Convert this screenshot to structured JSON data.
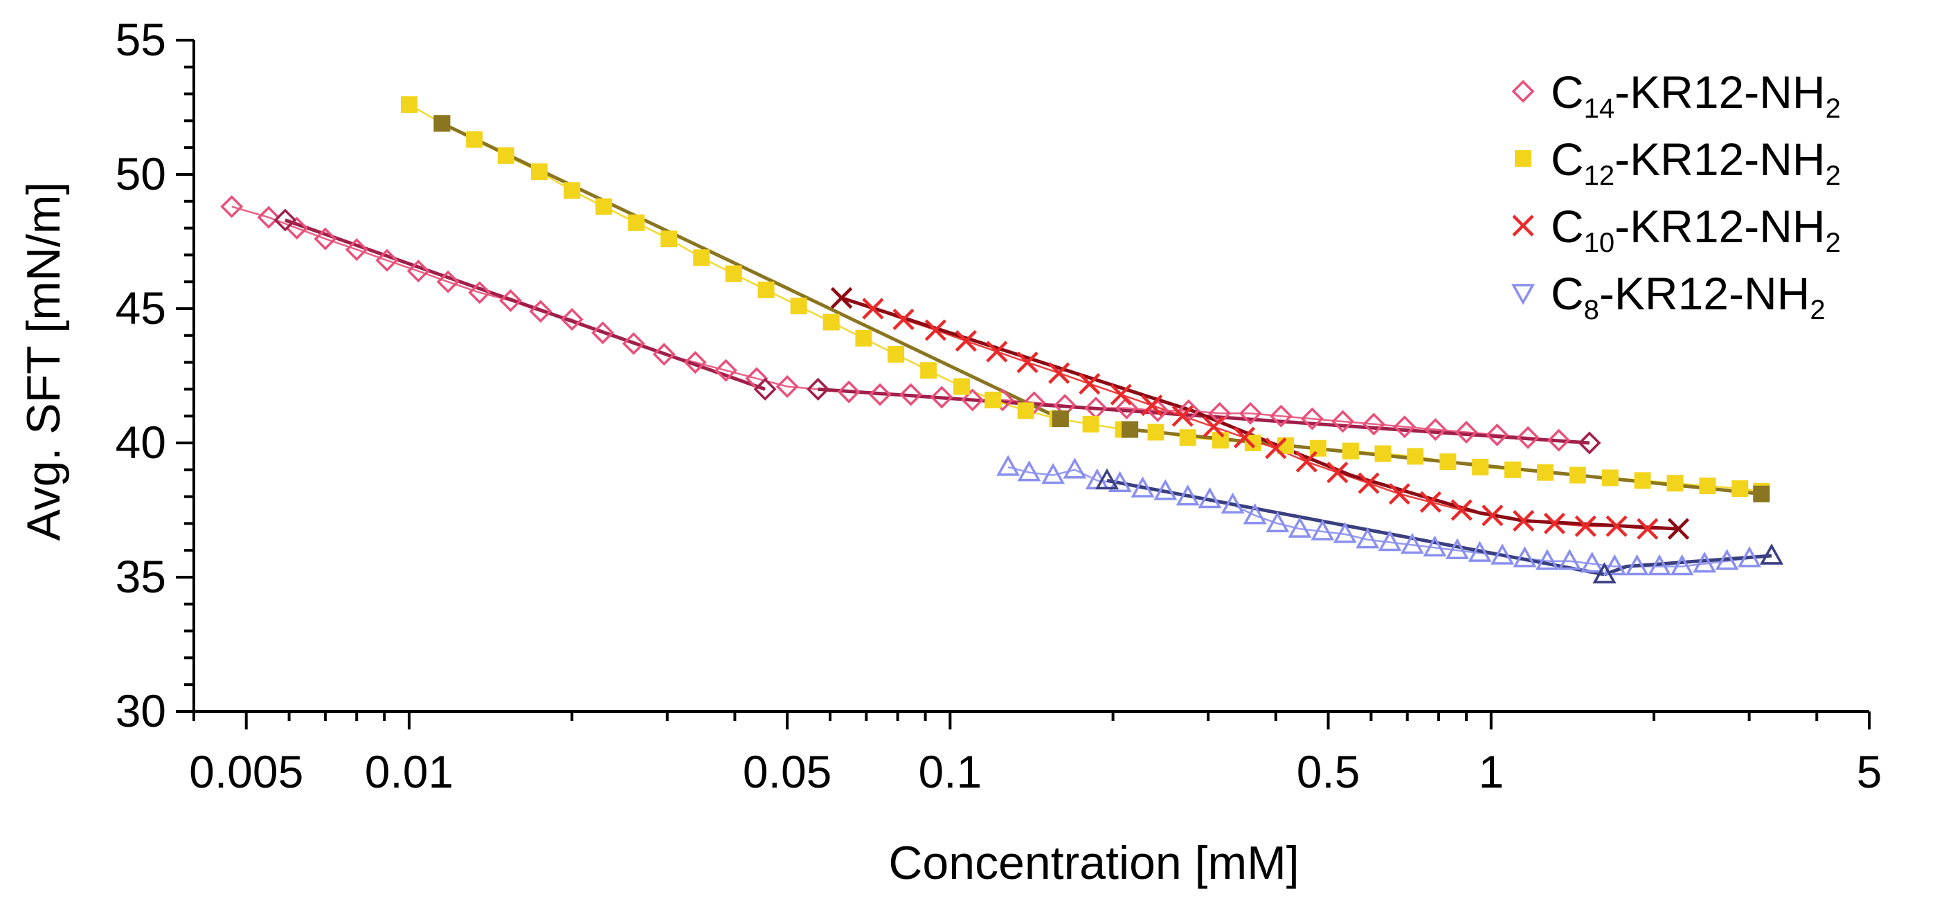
{
  "chart_data": {
    "type": "scatter",
    "title": "",
    "xlabel": "Concentration [mM]",
    "ylabel": "Avg. SFT [mN/m]",
    "xscale": "log",
    "xlim": [
      0.004,
      5
    ],
    "ylim": [
      30,
      55
    ],
    "x_ticks": [
      0.005,
      0.01,
      0.05,
      0.1,
      0.5,
      1,
      5
    ],
    "x_tick_labels": [
      "0.005",
      "0.01",
      "0.05",
      "0.1",
      "0.5",
      "1",
      "5"
    ],
    "y_ticks": [
      30,
      35,
      40,
      45,
      50,
      55
    ],
    "y_tick_labels": [
      "30",
      "35",
      "40",
      "45",
      "50",
      "55"
    ],
    "legend_position": "top-right",
    "series": [
      {
        "name": "C14-KR12-NH2",
        "legend_base": "C",
        "legend_sub1": "14",
        "legend_mid": "-KR12-NH",
        "legend_sub2": "2",
        "marker": "diamond",
        "color": "#e8507a",
        "fit_color": "#a0204a",
        "x": [
          0.0047,
          0.0055,
          0.0062,
          0.007,
          0.008,
          0.0091,
          0.0104,
          0.0118,
          0.0135,
          0.0154,
          0.0175,
          0.02,
          0.0228,
          0.026,
          0.0296,
          0.0338,
          0.0385,
          0.0439,
          0.05,
          0.057,
          0.065,
          0.0742,
          0.0846,
          0.0965,
          0.11,
          0.125,
          0.143,
          0.163,
          0.186,
          0.212,
          0.242,
          0.276,
          0.315,
          0.359,
          0.409,
          0.467,
          0.532,
          0.607,
          0.692,
          0.789,
          0.9,
          1.026,
          1.17,
          1.334,
          1.52
        ],
        "y": [
          48.8,
          48.4,
          48.0,
          47.6,
          47.2,
          46.8,
          46.4,
          46.0,
          45.6,
          45.3,
          44.9,
          44.6,
          44.1,
          43.7,
          43.3,
          43.0,
          42.7,
          42.4,
          42.1,
          42.0,
          41.9,
          41.8,
          41.8,
          41.7,
          41.6,
          41.6,
          41.5,
          41.4,
          41.3,
          41.3,
          41.2,
          41.2,
          41.1,
          41.1,
          41.0,
          40.9,
          40.8,
          40.7,
          40.6,
          40.5,
          40.4,
          40.3,
          40.2,
          40.1,
          40.0
        ],
        "fit_segments": [
          {
            "x": [
              0.0059,
              0.0455
            ],
            "y": [
              48.3,
              42.0
            ]
          },
          {
            "x": [
              0.057,
              1.52
            ],
            "y": [
              42.0,
              40.0
            ]
          }
        ]
      },
      {
        "name": "C12-KR12-NH2",
        "legend_base": "C",
        "legend_sub1": "12",
        "legend_mid": "-KR12-NH",
        "legend_sub2": "2",
        "marker": "square",
        "color": "#f2d41c",
        "fit_color": "#8a7520",
        "x": [
          0.01,
          0.0115,
          0.0132,
          0.0151,
          0.0174,
          0.02,
          0.0229,
          0.0263,
          0.0302,
          0.0347,
          0.0398,
          0.0457,
          0.0525,
          0.0603,
          0.0692,
          0.0794,
          0.0912,
          0.105,
          0.12,
          0.138,
          0.158,
          0.182,
          0.209,
          0.24,
          0.275,
          0.316,
          0.363,
          0.417,
          0.479,
          0.55,
          0.631,
          0.724,
          0.832,
          0.955,
          1.096,
          1.259,
          1.445,
          1.66,
          1.905,
          2.188,
          2.512,
          2.884,
          3.16
        ],
        "y": [
          52.6,
          51.9,
          51.3,
          50.7,
          50.1,
          49.4,
          48.8,
          48.2,
          47.6,
          46.9,
          46.3,
          45.7,
          45.1,
          44.5,
          43.9,
          43.3,
          42.7,
          42.1,
          41.6,
          41.2,
          40.9,
          40.7,
          40.5,
          40.4,
          40.2,
          40.1,
          40.0,
          39.9,
          39.8,
          39.7,
          39.6,
          39.5,
          39.3,
          39.1,
          39.0,
          38.9,
          38.8,
          38.7,
          38.6,
          38.5,
          38.4,
          38.3,
          38.2
        ],
        "fit_segments": [
          {
            "x": [
              0.0115,
              0.16
            ],
            "y": [
              51.9,
              40.9
            ]
          },
          {
            "x": [
              0.215,
              3.16
            ],
            "y": [
              40.5,
              38.1
            ]
          }
        ]
      },
      {
        "name": "C10-KR12-NH2",
        "legend_base": "C",
        "legend_sub1": "10",
        "legend_mid": "-KR12-NH",
        "legend_sub2": "2",
        "marker": "cross",
        "color": "#ea2a2a",
        "fit_color": "#8b0a14",
        "x": [
          0.063,
          0.072,
          0.082,
          0.094,
          0.107,
          0.122,
          0.139,
          0.159,
          0.181,
          0.207,
          0.236,
          0.269,
          0.307,
          0.35,
          0.4,
          0.456,
          0.52,
          0.594,
          0.677,
          0.773,
          0.882,
          1.006,
          1.148,
          1.31,
          1.495,
          1.706,
          1.946,
          2.22
        ],
        "y": [
          45.4,
          45.0,
          44.6,
          44.2,
          43.8,
          43.4,
          43.0,
          42.6,
          42.2,
          41.8,
          41.4,
          41.0,
          40.6,
          40.2,
          39.8,
          39.3,
          38.9,
          38.5,
          38.1,
          37.8,
          37.5,
          37.3,
          37.1,
          37.0,
          36.9,
          36.9,
          36.8,
          36.8
        ],
        "fit_segments": [
          {
            "x": [
              0.063,
              0.28,
              0.55,
              0.95,
              1.15,
              2.22
            ],
            "y": [
              45.4,
              41.2,
              38.8,
              37.4,
              37.1,
              36.8
            ]
          }
        ]
      },
      {
        "name": "C8-KR12-NH2",
        "legend_base": "C",
        "legend_sub1": "8",
        "legend_mid": "-KR12-NH",
        "legend_sub2": "2",
        "marker": "triangle",
        "color": "#8a8ff0",
        "fit_color": "#3a3f80",
        "x": [
          0.128,
          0.14,
          0.155,
          0.17,
          0.187,
          0.206,
          0.227,
          0.25,
          0.275,
          0.302,
          0.333,
          0.366,
          0.403,
          0.443,
          0.488,
          0.537,
          0.591,
          0.65,
          0.715,
          0.787,
          0.866,
          0.953,
          1.049,
          1.154,
          1.27,
          1.397,
          1.537,
          1.692,
          1.861,
          2.048,
          2.254,
          2.48,
          2.729,
          3.003,
          3.3
        ],
        "y": [
          39.1,
          38.9,
          38.8,
          39.0,
          38.6,
          38.5,
          38.3,
          38.2,
          38.0,
          37.9,
          37.7,
          37.3,
          37.0,
          36.8,
          36.7,
          36.6,
          36.4,
          36.3,
          36.2,
          36.1,
          36.0,
          35.9,
          35.8,
          35.7,
          35.6,
          35.6,
          35.5,
          35.4,
          35.4,
          35.4,
          35.4,
          35.5,
          35.6,
          35.7,
          35.8
        ],
        "fit_segments": [
          {
            "x": [
              0.195,
              1.62
            ],
            "y": [
              38.6,
              35.1
            ]
          },
          {
            "x": [
              1.62,
              1.78,
              3.3
            ],
            "y": [
              35.1,
              35.4,
              35.8
            ]
          }
        ]
      }
    ]
  }
}
